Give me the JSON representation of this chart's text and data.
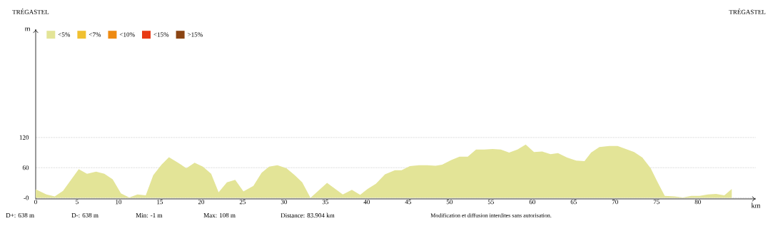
{
  "chart_data": {
    "type": "area",
    "xlabel": "km",
    "ylabel": "m",
    "x": [
      0,
      1.3,
      2.3,
      3.3,
      5.2,
      6.2,
      7.3,
      8.3,
      9.3,
      10.3,
      11.3,
      12.3,
      13.3,
      14.2,
      15.2,
      16.1,
      17.2,
      18.2,
      19.2,
      20.2,
      21.2,
      22.1,
      23.1,
      24.1,
      25.1,
      26.3,
      27.3,
      28.2,
      29.2,
      30.3,
      31.3,
      32.2,
      33.2,
      35.2,
      37.1,
      38.2,
      39.2,
      40.1,
      41.1,
      42.2,
      43.4,
      44.2,
      45.2,
      46.3,
      47.3,
      48.3,
      49.1,
      50.2,
      51.2,
      52.2,
      53.2,
      54.2,
      55.2,
      56.2,
      57.2,
      58.2,
      59.2,
      60.2,
      61.2,
      62.2,
      63.1,
      64.2,
      65.3,
      66.3,
      67.1,
      68.1,
      69.3,
      70.3,
      71.3,
      72.3,
      73.3,
      74.3,
      75.2,
      76.0,
      77.2,
      78.2,
      79.2,
      80.2,
      81.2,
      82.2,
      83.2,
      84.1
    ],
    "series": [
      {
        "name": "<5%",
        "color": "#e3e497",
        "values": [
          17,
          7,
          3,
          14,
          57,
          48,
          52,
          48,
          37,
          9,
          1,
          7,
          5,
          45,
          66,
          81,
          70,
          59,
          70,
          62,
          48,
          11,
          31,
          36,
          13,
          24,
          50,
          62,
          65,
          59,
          45,
          31,
          0,
          30,
          7,
          16,
          6,
          18,
          28,
          47,
          55,
          55,
          63,
          65,
          65,
          64,
          66,
          75,
          82,
          82,
          96,
          96,
          97,
          96,
          90,
          96,
          106,
          91,
          92,
          87,
          89,
          80,
          74,
          73,
          90,
          101,
          103,
          103,
          97,
          91,
          80,
          59,
          29,
          4,
          3,
          1,
          4,
          4,
          7,
          8,
          5,
          18
        ]
      },
      {
        "name": "<7%",
        "color": "#f0c030",
        "values": [
          null,
          null,
          null,
          null,
          null,
          null,
          null,
          null,
          null,
          null,
          null,
          null,
          null,
          null,
          null,
          null,
          null,
          null,
          null,
          null,
          null,
          null,
          null,
          null,
          null,
          null,
          null,
          null,
          null,
          null,
          null,
          null,
          null,
          null,
          null,
          null,
          null,
          null,
          null,
          null,
          null,
          null,
          null,
          null,
          null,
          null,
          null,
          null,
          null,
          null,
          null,
          null,
          null,
          null,
          null,
          null,
          null,
          null,
          null,
          null,
          null,
          null,
          null,
          null,
          null,
          null,
          null,
          null,
          null,
          null,
          null,
          null,
          null,
          null,
          null,
          null,
          null,
          null,
          null,
          null,
          null,
          null
        ]
      },
      {
        "name": "<10%",
        "color": "#ee8a12",
        "values": [
          null,
          null,
          null,
          null,
          null,
          null,
          null,
          null,
          null,
          null,
          null,
          null,
          null,
          null,
          null,
          null,
          null,
          null,
          null,
          null,
          null,
          null,
          null,
          null,
          null,
          null,
          null,
          null,
          null,
          null,
          null,
          null,
          null,
          null,
          null,
          null,
          null,
          null,
          null,
          null,
          null,
          null,
          null,
          null,
          null,
          null,
          null,
          null,
          null,
          null,
          null,
          null,
          null,
          null,
          null,
          null,
          null,
          null,
          null,
          null,
          null,
          null,
          null,
          null,
          null,
          null,
          null,
          null,
          null,
          null,
          null,
          null,
          null,
          null,
          null,
          null,
          null,
          null,
          null,
          null,
          null,
          null
        ]
      },
      {
        "name": "<15%",
        "color": "#e83a14",
        "values": [
          null,
          null,
          null,
          null,
          null,
          null,
          null,
          null,
          null,
          null,
          null,
          null,
          null,
          null,
          null,
          null,
          null,
          null,
          null,
          null,
          null,
          null,
          null,
          null,
          null,
          null,
          null,
          null,
          null,
          null,
          null,
          null,
          null,
          null,
          null,
          null,
          null,
          null,
          null,
          null,
          null,
          null,
          null,
          null,
          null,
          null,
          null,
          null,
          null,
          null,
          null,
          null,
          null,
          null,
          null,
          null,
          null,
          null,
          null,
          null,
          null,
          null,
          null,
          null,
          null,
          null,
          null,
          null,
          null,
          null,
          null,
          null,
          null,
          null,
          null,
          null,
          null,
          null,
          null,
          null,
          null,
          null
        ]
      },
      {
        "name": ">15%",
        "color": "#8b4513",
        "values": [
          null,
          null,
          null,
          null,
          null,
          null,
          null,
          null,
          null,
          null,
          null,
          null,
          null,
          null,
          null,
          null,
          null,
          null,
          null,
          null,
          null,
          null,
          null,
          null,
          null,
          null,
          null,
          null,
          null,
          null,
          null,
          null,
          null,
          null,
          null,
          null,
          null,
          null,
          null,
          null,
          null,
          null,
          null,
          null,
          null,
          null,
          null,
          null,
          null,
          null,
          null,
          null,
          null,
          null,
          null,
          null,
          null,
          null,
          null,
          null,
          null,
          null,
          null,
          null,
          null,
          null,
          null,
          null,
          null,
          null,
          null,
          null,
          null,
          null,
          null,
          null,
          null,
          null,
          null,
          null,
          null,
          null
        ]
      }
    ],
    "xlim": [
      0,
      87
    ],
    "ylim": [
      -2,
      335
    ],
    "xticks": [
      0,
      5,
      10,
      15,
      20,
      25,
      30,
      35,
      40,
      45,
      50,
      55,
      60,
      65,
      70,
      75,
      80
    ],
    "yticks": [
      {
        "value": 0,
        "label": "-0"
      },
      60,
      120
    ],
    "grid": "y",
    "legend": "top left",
    "annotations": [
      "TRÉGASTEL",
      "TRÉGASTEL",
      "D+: 638 m",
      "D-: 638 m",
      "Min: -1 m",
      "Max: 108 m",
      "Distance: 83.904 km",
      "Modification et diffusion interdites sans autorisation."
    ]
  }
}
